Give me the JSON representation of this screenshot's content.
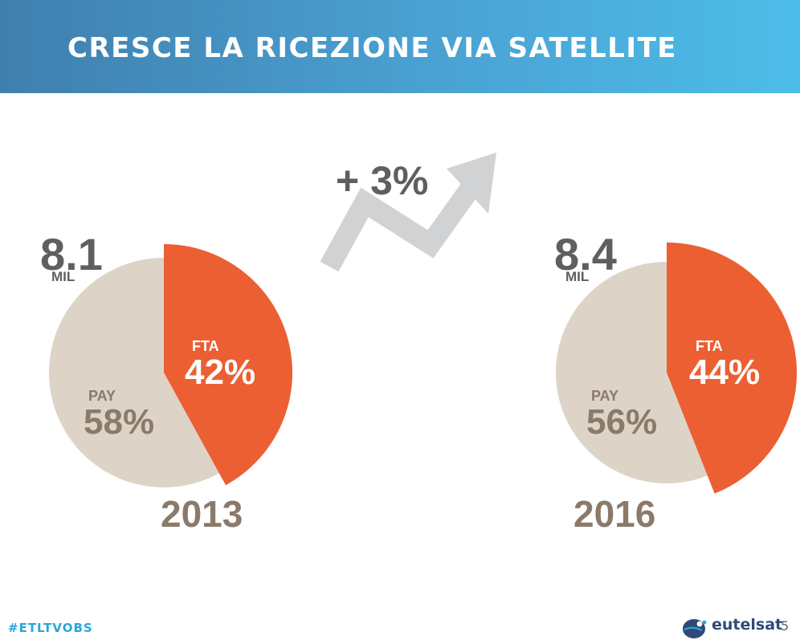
{
  "header": {
    "title": "CRESCE LA RICEZIONE VIA SATELLITE"
  },
  "growth": {
    "label": "+ 3%"
  },
  "chart_data": [
    {
      "type": "pie",
      "year": "2013",
      "total": "8.1",
      "total_unit": "MIL",
      "slices": [
        {
          "name": "FTA",
          "value": 42,
          "label": "42%",
          "color": "#eb5f33"
        },
        {
          "name": "PAY",
          "value": 58,
          "label": "58%",
          "color": "#ddd4c7"
        }
      ]
    },
    {
      "type": "pie",
      "year": "2016",
      "total": "8.4",
      "total_unit": "MIL",
      "slices": [
        {
          "name": "FTA",
          "value": 44,
          "label": "44%",
          "color": "#eb5f33"
        },
        {
          "name": "PAY",
          "value": 56,
          "label": "56%",
          "color": "#ddd4c7"
        }
      ]
    }
  ],
  "footer": {
    "hashtag": "#ETLTVOBS",
    "brand": "eutelsat",
    "page": "5"
  },
  "colors": {
    "fta": "#eb5f33",
    "pay": "#ddd4c7",
    "header_start": "#3f7fae",
    "header_end": "#4dbde9",
    "text_dark": "#5f5e60",
    "text_brown": "#8b7a6a",
    "arrow": "#d1d2d4",
    "hashtag": "#2aa6d9"
  },
  "icons": {
    "logo": "eutelsat-logo-icon",
    "arrow": "trend-up-arrow-icon"
  }
}
